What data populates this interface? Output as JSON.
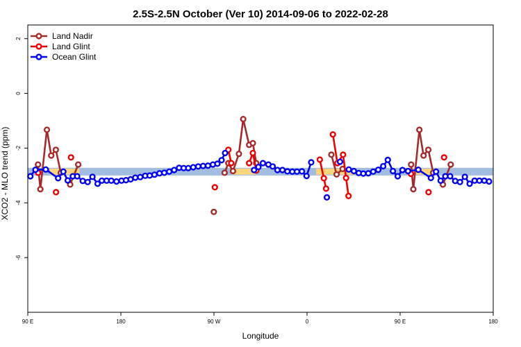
{
  "chart_data": {
    "type": "line",
    "title": "2.5S-2.5N October (Ver 10)   2014-09-06 to 2022-02-28",
    "xlabel": "Longitude",
    "ylabel": "XCO2 - MLO trend (ppm)",
    "xlim": [
      0,
      360
    ],
    "ylim": [
      -8,
      2.5
    ],
    "x_ticks": [
      {
        "value": 0,
        "label": "90 E"
      },
      {
        "value": 72,
        "label": "180"
      },
      {
        "value": 144,
        "label": "90 W"
      },
      {
        "value": 216,
        "label": "0"
      },
      {
        "value": 288,
        "label": "90 E"
      },
      {
        "value": 360,
        "label": "180"
      }
    ],
    "y_ticks": [
      {
        "value": 2,
        "label": "2"
      },
      {
        "value": 0,
        "label": "0"
      },
      {
        "value": -2,
        "label": "-2"
      },
      {
        "value": -4,
        "label": "-4"
      },
      {
        "value": -6,
        "label": "-6"
      }
    ],
    "legend_position": "top-left",
    "bands": [
      {
        "color": "#a3bde0",
        "y_range": [
          -3.0,
          -2.72
        ],
        "x_range": [
          0,
          360
        ]
      },
      {
        "color": "#fdd67d",
        "y_range": [
          -2.97,
          -2.75
        ],
        "x_range": [
          17,
          40
        ]
      },
      {
        "color": "#fdd67d",
        "y_range": [
          -2.97,
          -2.75
        ],
        "x_range": [
          158,
          176
        ]
      },
      {
        "color": "#fdd67d",
        "y_range": [
          -2.97,
          -2.75
        ],
        "x_range": [
          223,
          253
        ]
      },
      {
        "color": "#fdd67d",
        "y_range": [
          -2.97,
          -2.75
        ],
        "x_range": [
          296,
          317
        ]
      }
    ],
    "series": [
      {
        "name": "Land Nadir",
        "color": "#a52a2a",
        "segments": [
          [
            [
              7.9,
              -2.6
            ],
            [
              9.7,
              -3.5
            ],
            [
              14.8,
              -1.33
            ],
            [
              18.1,
              -2.27
            ],
            [
              21.7,
              -2.06
            ],
            [
              25.5,
              -2.9
            ]
          ],
          [
            [
              32.8,
              -3.33
            ],
            [
              39.0,
              -2.6
            ]
          ],
          [
            [
              143.9,
              -4.33
            ]
          ],
          [
            [
              152.3,
              -2.9
            ],
            [
              155.1,
              -2.55
            ],
            [
              158.7,
              -2.84
            ],
            [
              163.3,
              -2.21
            ],
            [
              166.6,
              -0.94
            ],
            [
              171.2,
              -1.88
            ],
            [
              174.1,
              -1.82
            ],
            [
              176.7,
              -2.55
            ]
          ],
          [
            [
              234.8,
              -2.24
            ],
            [
              238.9,
              -2.96
            ],
            [
              243.5,
              -2.76
            ]
          ],
          [
            [
              296.5,
              -2.6
            ],
            [
              298.2,
              -3.5
            ],
            [
              302.9,
              -1.33
            ],
            [
              306.1,
              -2.27
            ],
            [
              309.8,
              -2.06
            ],
            [
              313.6,
              -2.9
            ]
          ],
          [
            [
              321.1,
              -3.33
            ],
            [
              327.1,
              -2.6
            ]
          ]
        ]
      },
      {
        "name": "Land Glint",
        "color": "#ee0000",
        "segments": [
          [
            [
              8.0,
              -2.9
            ]
          ],
          [
            [
              21.8,
              -3.61
            ]
          ],
          [
            [
              33.4,
              -2.34
            ]
          ],
          [
            [
              144.7,
              -3.43
            ]
          ],
          [
            [
              155.1,
              -2.06
            ],
            [
              157.4,
              -2.55
            ]
          ],
          [
            [
              171.2,
              -2.55
            ],
            [
              174.1,
              -2.18
            ],
            [
              176.8,
              -2.82
            ]
          ],
          [
            [
              225.9,
              -2.42
            ],
            [
              229.0,
              -3.1
            ],
            [
              230.7,
              -3.48
            ]
          ],
          [
            [
              236.0,
              -1.5
            ],
            [
              239.5,
              -2.55
            ],
            [
              243.9,
              -2.24
            ],
            [
              246.2,
              -3.09
            ],
            [
              248.1,
              -3.75
            ]
          ],
          [
            [
              296.4,
              -2.94
            ]
          ],
          [
            [
              310.0,
              -3.61
            ]
          ],
          [
            [
              322.0,
              -2.34
            ]
          ]
        ]
      },
      {
        "name": "Ocean Glint",
        "color": "#0000ee",
        "segments": [
          [
            [
              2,
              -3.03
            ],
            [
              5.9,
              -2.79
            ],
            [
              13.9,
              -2.78
            ],
            [
              23.5,
              -3.1
            ],
            [
              27.5,
              -2.86
            ],
            [
              30.9,
              -3.18
            ],
            [
              34.8,
              -3.03
            ],
            [
              38.2,
              -3.03
            ],
            [
              42.5,
              -3.2
            ],
            [
              46.3,
              -3.24
            ],
            [
              50.0,
              -3.05
            ],
            [
              54.0,
              -3.3
            ],
            [
              57.3,
              -3.19
            ],
            [
              61.0,
              -3.19
            ],
            [
              64.6,
              -3.19
            ],
            [
              68.6,
              -3.22
            ],
            [
              72.5,
              -3.19
            ],
            [
              76.0,
              -3.17
            ],
            [
              79.5,
              -3.14
            ],
            [
              83.2,
              -3.08
            ],
            [
              87.0,
              -3.06
            ],
            [
              90.8,
              -3.01
            ],
            [
              94.3,
              -3.0
            ],
            [
              98.0,
              -2.97
            ],
            [
              101.9,
              -2.92
            ],
            [
              105.6,
              -2.9
            ],
            [
              109.4,
              -2.86
            ],
            [
              113.2,
              -2.8
            ],
            [
              117.0,
              -2.72
            ],
            [
              120.6,
              -2.73
            ],
            [
              124.1,
              -2.73
            ],
            [
              128.0,
              -2.7
            ],
            [
              131.8,
              -2.67
            ],
            [
              135.6,
              -2.65
            ],
            [
              139.4,
              -2.64
            ],
            [
              143.2,
              -2.6
            ],
            [
              146.7,
              -2.57
            ],
            [
              149.9,
              -2.44
            ],
            [
              152.6,
              -2.18
            ]
          ],
          [
            [
              175.0,
              -2.8
            ],
            [
              178.4,
              -2.69
            ],
            [
              181.9,
              -2.55
            ],
            [
              186.1,
              -2.6
            ],
            [
              189.4,
              -2.67
            ],
            [
              193.1,
              -2.8
            ],
            [
              197.0,
              -2.8
            ],
            [
              200.8,
              -2.85
            ],
            [
              204.6,
              -2.86
            ],
            [
              208.2,
              -2.86
            ],
            [
              212.0,
              -2.85
            ],
            [
              215.6,
              -3.02
            ],
            [
              219.2,
              -2.52
            ]
          ],
          [
            [
              231.3,
              -3.8
            ]
          ],
          [
            [
              241.5,
              -2.5
            ]
          ],
          [
            [
              248.3,
              -2.78
            ],
            [
              252.2,
              -2.84
            ],
            [
              256.0,
              -2.91
            ],
            [
              259.5,
              -2.93
            ],
            [
              263.4,
              -2.92
            ],
            [
              267.2,
              -2.86
            ],
            [
              271.1,
              -2.79
            ],
            [
              274.9,
              -2.66
            ],
            [
              278.5,
              -2.43
            ],
            [
              282.4,
              -2.84
            ],
            [
              286.1,
              -3.03
            ],
            [
              289.8,
              -2.8
            ],
            [
              294.1,
              -2.84
            ],
            [
              302.1,
              -2.79
            ],
            [
              311.8,
              -3.09
            ],
            [
              315.8,
              -2.86
            ],
            [
              319.3,
              -3.19
            ],
            [
              323.0,
              -3.03
            ],
            [
              326.7,
              -3.03
            ],
            [
              330.6,
              -3.2
            ],
            [
              334.3,
              -3.24
            ],
            [
              338.1,
              -3.05
            ],
            [
              341.8,
              -3.3
            ],
            [
              345.6,
              -3.19
            ],
            [
              349.3,
              -3.19
            ],
            [
              353.1,
              -3.19
            ],
            [
              356.8,
              -3.22
            ]
          ]
        ]
      }
    ]
  }
}
